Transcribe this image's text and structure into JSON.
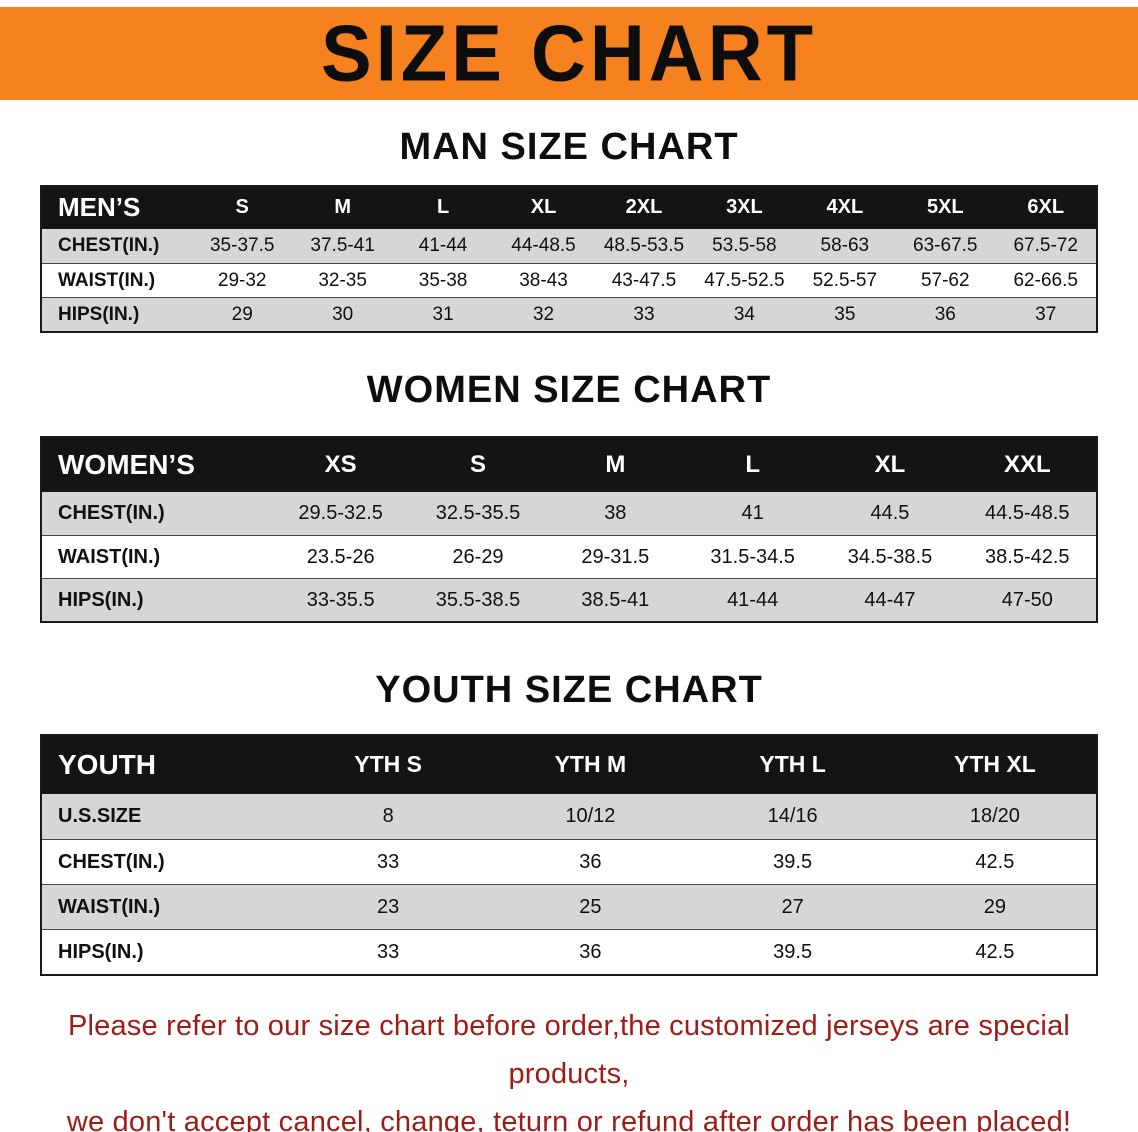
{
  "banner": {
    "title": "SIZE CHART",
    "background": "#F5821F"
  },
  "sections": {
    "men": {
      "heading": "MAN SIZE CHART"
    },
    "women": {
      "heading": "WOMEN SIZE CHART"
    },
    "youth": {
      "heading": "YOUTH SIZE CHART"
    }
  },
  "tables": {
    "men": {
      "label": "MEN’S",
      "columns": [
        "S",
        "M",
        "L",
        "XL",
        "2XL",
        "3XL",
        "4XL",
        "5XL",
        "6XL"
      ],
      "rows": [
        {
          "label": "CHEST(IN.)",
          "values": [
            "35-37.5",
            "37.5-41",
            "41-44",
            "44-48.5",
            "48.5-53.5",
            "53.5-58",
            "58-63",
            "63-67.5",
            "67.5-72"
          ]
        },
        {
          "label": "WAIST(IN.)",
          "values": [
            "29-32",
            "32-35",
            "35-38",
            "38-43",
            "43-47.5",
            "47.5-52.5",
            "52.5-57",
            "57-62",
            "62-66.5"
          ]
        },
        {
          "label": "HIPS(IN.)",
          "values": [
            "29",
            "30",
            "31",
            "32",
            "33",
            "34",
            "35",
            "36",
            "37"
          ]
        }
      ]
    },
    "women": {
      "label": "WOMEN’S",
      "columns": [
        "XS",
        "S",
        "M",
        "L",
        "XL",
        "XXL"
      ],
      "rows": [
        {
          "label": "CHEST(IN.)",
          "values": [
            "29.5-32.5",
            "32.5-35.5",
            "38",
            "41",
            "44.5",
            "44.5-48.5"
          ]
        },
        {
          "label": "WAIST(IN.)",
          "values": [
            "23.5-26",
            "26-29",
            "29-31.5",
            "31.5-34.5",
            "34.5-38.5",
            "38.5-42.5"
          ]
        },
        {
          "label": "HIPS(IN.)",
          "values": [
            "33-35.5",
            "35.5-38.5",
            "38.5-41",
            "41-44",
            "44-47",
            "47-50"
          ]
        }
      ]
    },
    "youth": {
      "label": "YOUTH",
      "columns": [
        "YTH S",
        "YTH M",
        "YTH L",
        "YTH XL"
      ],
      "rows": [
        {
          "label": "U.S.SIZE",
          "values": [
            "8",
            "10/12",
            "14/16",
            "18/20"
          ]
        },
        {
          "label": "CHEST(IN.)",
          "values": [
            "33",
            "36",
            "39.5",
            "42.5"
          ]
        },
        {
          "label": "WAIST(IN.)",
          "values": [
            "23",
            "25",
            "27",
            "29"
          ]
        },
        {
          "label": "HIPS(IN.)",
          "values": [
            "33",
            "36",
            "39.5",
            "42.5"
          ]
        }
      ]
    }
  },
  "footer": {
    "line1": "Please refer to our size chart before order,the customized jerseys are special products,",
    "line2": "we don't accept cancel, change, teturn or refund after order has been placed!",
    "color": "#9e1c16"
  }
}
